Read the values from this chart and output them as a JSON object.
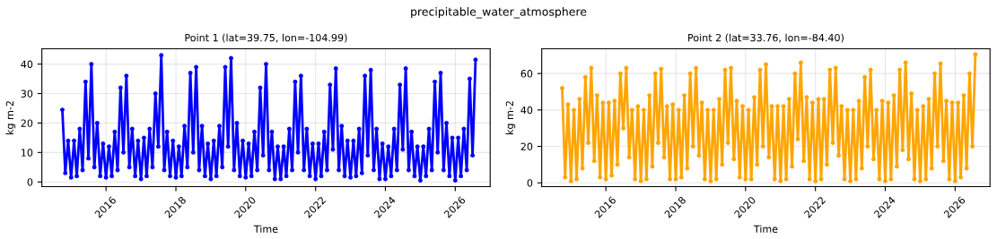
{
  "chart_data": [
    {
      "type": "line",
      "title": "Point 1 (lat=39.75, lon=-104.99)",
      "xlabel": "Time",
      "ylabel": "kg m-2",
      "annotations": [
        "precipitable_water_atmosphere"
      ],
      "xlim": [
        "2014-03",
        "2027-01"
      ],
      "xticks": [
        "2016",
        "2018",
        "2020",
        "2022",
        "2024",
        "2026"
      ],
      "ylim": [
        -1.6,
        45.2
      ],
      "yticks": [
        0,
        10,
        20,
        30,
        40
      ],
      "grid": true,
      "marker": "circle",
      "line_style": "solid",
      "x": [
        "2014-10",
        "2014-11",
        "2014-12",
        "2015-01",
        "2015-02",
        "2015-03",
        "2015-04",
        "2015-05",
        "2015-06",
        "2015-07",
        "2015-08",
        "2015-09",
        "2015-10",
        "2015-11",
        "2015-12",
        "2016-01",
        "2016-02",
        "2016-03",
        "2016-04",
        "2016-05",
        "2016-06",
        "2016-07",
        "2016-08",
        "2016-09",
        "2016-10",
        "2016-11",
        "2016-12",
        "2017-01",
        "2017-02",
        "2017-03",
        "2017-04",
        "2017-05",
        "2017-06",
        "2017-07",
        "2017-08",
        "2017-09",
        "2017-10",
        "2017-11",
        "2017-12",
        "2018-01",
        "2018-02",
        "2018-03",
        "2018-04",
        "2018-05",
        "2018-06",
        "2018-07",
        "2018-08",
        "2018-09",
        "2018-10",
        "2018-11",
        "2018-12",
        "2019-01",
        "2019-02",
        "2019-03",
        "2019-04",
        "2019-05",
        "2019-06",
        "2019-07",
        "2019-08",
        "2019-09",
        "2019-10",
        "2019-11",
        "2019-12",
        "2020-01",
        "2020-02",
        "2020-03",
        "2020-04",
        "2020-05",
        "2020-06",
        "2020-07",
        "2020-08",
        "2020-09",
        "2020-10",
        "2020-11",
        "2020-12",
        "2021-01",
        "2021-02",
        "2021-03",
        "2021-04",
        "2021-05",
        "2021-06",
        "2021-07",
        "2021-08",
        "2021-09",
        "2021-10",
        "2021-11",
        "2021-12",
        "2022-01",
        "2022-02",
        "2022-03",
        "2022-04",
        "2022-05",
        "2022-06",
        "2022-07",
        "2022-08",
        "2022-09",
        "2022-10",
        "2022-11",
        "2022-12",
        "2023-01",
        "2023-02",
        "2023-03",
        "2023-04",
        "2023-05",
        "2023-06",
        "2023-07",
        "2023-08",
        "2023-09",
        "2023-10",
        "2023-11",
        "2023-12",
        "2024-01",
        "2024-02",
        "2024-03",
        "2024-04",
        "2024-05",
        "2024-06",
        "2024-07",
        "2024-08",
        "2024-09",
        "2024-10",
        "2024-11",
        "2024-12",
        "2025-01",
        "2025-02",
        "2025-03",
        "2025-04",
        "2025-05",
        "2025-06",
        "2025-07",
        "2025-08",
        "2025-09",
        "2025-10",
        "2025-11",
        "2025-12",
        "2026-01",
        "2026-02",
        "2026-03",
        "2026-04",
        "2026-05",
        "2026-06",
        "2026-07",
        "2026-08"
      ],
      "series": [
        {
          "color": "#0000ff",
          "values": [
            24.5,
            3,
            14,
            1.5,
            14,
            2,
            18,
            4,
            34,
            8,
            40,
            5,
            20,
            2,
            13,
            1.5,
            12,
            2,
            17,
            4,
            32,
            10,
            36,
            5,
            18,
            2,
            14,
            1,
            15,
            2,
            18,
            5,
            30,
            12,
            43,
            4,
            17,
            2,
            14,
            1.5,
            12,
            2,
            19,
            5,
            37,
            10,
            39,
            4,
            19,
            2,
            13,
            1,
            14,
            2,
            19,
            5,
            39,
            12,
            42,
            4,
            20,
            2,
            14,
            1.5,
            13,
            2,
            17,
            4,
            32,
            9,
            40,
            4,
            17,
            1,
            12,
            1,
            12,
            2,
            18,
            4,
            34,
            10,
            36,
            4,
            18,
            2,
            13,
            1,
            13,
            2,
            17,
            4,
            33,
            11,
            38.5,
            4,
            19,
            2,
            14,
            1.5,
            14,
            2,
            18,
            3,
            36,
            9,
            38,
            4,
            18,
            1,
            13,
            1,
            12,
            2,
            18,
            4,
            33,
            11,
            38.5,
            4,
            17,
            2,
            12,
            0.5,
            12,
            2,
            18,
            4,
            34,
            10,
            37,
            4,
            20,
            2,
            15,
            0.5,
            15,
            2,
            18,
            4,
            35,
            9,
            41.5
          ]
        }
      ]
    },
    {
      "type": "line",
      "title": "Point 2 (lat=33.76, lon=-84.40)",
      "xlabel": "Time",
      "ylabel": "kg m-2",
      "xlim": [
        "2014-03",
        "2027-01"
      ],
      "xticks": [
        "2016",
        "2018",
        "2020",
        "2022",
        "2024",
        "2026"
      ],
      "ylim": [
        -2.1,
        73.6
      ],
      "yticks": [
        0,
        20,
        40,
        60
      ],
      "grid": true,
      "marker": "circle",
      "line_style": "solid",
      "x": [
        "2014-10",
        "2014-11",
        "2014-12",
        "2015-01",
        "2015-02",
        "2015-03",
        "2015-04",
        "2015-05",
        "2015-06",
        "2015-07",
        "2015-08",
        "2015-09",
        "2015-10",
        "2015-11",
        "2015-12",
        "2016-01",
        "2016-02",
        "2016-03",
        "2016-04",
        "2016-05",
        "2016-06",
        "2016-07",
        "2016-08",
        "2016-09",
        "2016-10",
        "2016-11",
        "2016-12",
        "2017-01",
        "2017-02",
        "2017-03",
        "2017-04",
        "2017-05",
        "2017-06",
        "2017-07",
        "2017-08",
        "2017-09",
        "2017-10",
        "2017-11",
        "2017-12",
        "2018-01",
        "2018-02",
        "2018-03",
        "2018-04",
        "2018-05",
        "2018-06",
        "2018-07",
        "2018-08",
        "2018-09",
        "2018-10",
        "2018-11",
        "2018-12",
        "2019-01",
        "2019-02",
        "2019-03",
        "2019-04",
        "2019-05",
        "2019-06",
        "2019-07",
        "2019-08",
        "2019-09",
        "2019-10",
        "2019-11",
        "2019-12",
        "2020-01",
        "2020-02",
        "2020-03",
        "2020-04",
        "2020-05",
        "2020-06",
        "2020-07",
        "2020-08",
        "2020-09",
        "2020-10",
        "2020-11",
        "2020-12",
        "2021-01",
        "2021-02",
        "2021-03",
        "2021-04",
        "2021-05",
        "2021-06",
        "2021-07",
        "2021-08",
        "2021-09",
        "2021-10",
        "2021-11",
        "2021-12",
        "2022-01",
        "2022-02",
        "2022-03",
        "2022-04",
        "2022-05",
        "2022-06",
        "2022-07",
        "2022-08",
        "2022-09",
        "2022-10",
        "2022-11",
        "2022-12",
        "2023-01",
        "2023-02",
        "2023-03",
        "2023-04",
        "2023-05",
        "2023-06",
        "2023-07",
        "2023-08",
        "2023-09",
        "2023-10",
        "2023-11",
        "2023-12",
        "2024-01",
        "2024-02",
        "2024-03",
        "2024-04",
        "2024-05",
        "2024-06",
        "2024-07",
        "2024-08",
        "2024-09",
        "2024-10",
        "2024-11",
        "2024-12",
        "2025-01",
        "2025-02",
        "2025-03",
        "2025-04",
        "2025-05",
        "2025-06",
        "2025-07",
        "2025-08",
        "2025-09",
        "2025-10",
        "2025-11",
        "2025-12",
        "2026-01",
        "2026-02",
        "2026-03",
        "2026-04",
        "2026-05",
        "2026-06",
        "2026-07",
        "2026-08"
      ],
      "series": [
        {
          "color": "#ffa500",
          "values": [
            52,
            3,
            43,
            1,
            40,
            2,
            46,
            8,
            58,
            22,
            63,
            12,
            48,
            3,
            44,
            2,
            44,
            4,
            45,
            10,
            60,
            30,
            63,
            14,
            40,
            2,
            42,
            1,
            40,
            2,
            48,
            9,
            60,
            22,
            62.5,
            14,
            42,
            2,
            43,
            2,
            40,
            3,
            48,
            8,
            60,
            20,
            63,
            15,
            44,
            2,
            40,
            1,
            40,
            2,
            46,
            10,
            62,
            22,
            63,
            13,
            45,
            3,
            42,
            2,
            40,
            2,
            47,
            10,
            62,
            20,
            65,
            14,
            42,
            2,
            42,
            1,
            42,
            2,
            46,
            9,
            60,
            24,
            66,
            12,
            47,
            2,
            44,
            1,
            46,
            2,
            46,
            10,
            62,
            22,
            63,
            15,
            42,
            2,
            40,
            1,
            40,
            2,
            45,
            8,
            58,
            20,
            62,
            13,
            40,
            2,
            45,
            1,
            44,
            2,
            48,
            9,
            62,
            18,
            66,
            13,
            49,
            2,
            40,
            1,
            42,
            2,
            46,
            8,
            60,
            20,
            65.5,
            12,
            45,
            2,
            44,
            1,
            44,
            3,
            48,
            8,
            60,
            20,
            70.5
          ]
        }
      ]
    }
  ]
}
